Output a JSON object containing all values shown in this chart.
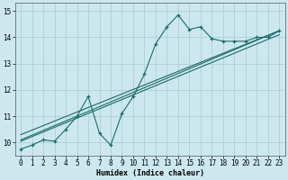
{
  "xlabel": "Humidex (Indice chaleur)",
  "bg_color": "#cce8ee",
  "grid_color": "#aed0d8",
  "line_color": "#1a6b6b",
  "xlim": [
    -0.5,
    23.5
  ],
  "ylim": [
    9.5,
    15.3
  ],
  "xticks": [
    0,
    1,
    2,
    3,
    4,
    5,
    6,
    7,
    8,
    9,
    10,
    11,
    12,
    13,
    14,
    15,
    16,
    17,
    18,
    19,
    20,
    21,
    22,
    23
  ],
  "yticks": [
    10,
    11,
    12,
    13,
    14,
    15
  ],
  "main_x": [
    0,
    1,
    2,
    3,
    4,
    5,
    6,
    7,
    8,
    9,
    10,
    11,
    12,
    13,
    14,
    15,
    16,
    17,
    18,
    19,
    20,
    21,
    22,
    23
  ],
  "main_y": [
    9.75,
    9.9,
    10.1,
    10.05,
    10.5,
    11.0,
    11.75,
    10.35,
    9.9,
    11.1,
    11.75,
    12.6,
    13.75,
    14.4,
    14.85,
    14.3,
    14.4,
    13.95,
    13.85,
    13.85,
    13.85,
    14.0,
    14.0,
    14.25
  ],
  "line2_x": [
    0,
    23
  ],
  "line2_y": [
    10.1,
    14.25
  ],
  "line3_x": [
    0,
    23
  ],
  "line3_y": [
    10.3,
    14.25
  ],
  "line4_x": [
    0,
    23
  ],
  "line4_y": [
    10.05,
    14.1
  ]
}
